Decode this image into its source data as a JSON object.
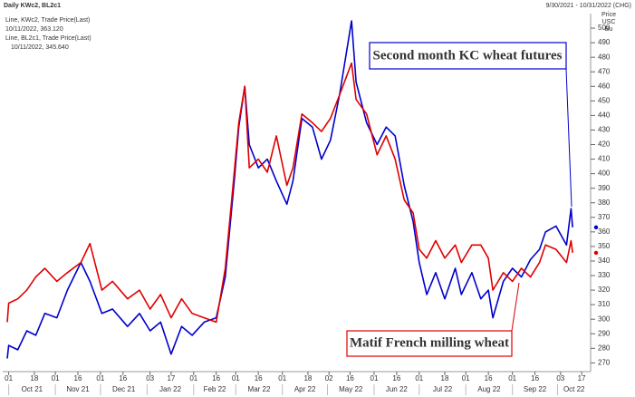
{
  "chart_data": {
    "type": "line",
    "title": "Daily KWc2, BL2c1",
    "date_range": "9/30/2021 - 10/31/2022 (CHG)",
    "y_axis_label": [
      "Price",
      "USC",
      "Bu"
    ],
    "grid": false,
    "xlim": [
      "2021-09-27",
      "2022-10-23"
    ],
    "ylim": [
      264,
      510
    ],
    "yticks": [
      270,
      280,
      290,
      300,
      310,
      320,
      330,
      340,
      350,
      360,
      370,
      380,
      390,
      400,
      410,
      420,
      430,
      440,
      450,
      460,
      470,
      480,
      490,
      500
    ],
    "xticks": [
      {
        "value": "2021-10-01",
        "label": "01"
      },
      {
        "value": "2021-10-18",
        "label": "18"
      },
      {
        "value": "2021-11-01",
        "label": "01"
      },
      {
        "value": "2021-11-16",
        "label": "16"
      },
      {
        "value": "2021-12-01",
        "label": "01"
      },
      {
        "value": "2021-12-16",
        "label": "16"
      },
      {
        "value": "2022-01-03",
        "label": "03"
      },
      {
        "value": "2022-01-17",
        "label": "17"
      },
      {
        "value": "2022-02-01",
        "label": "01"
      },
      {
        "value": "2022-02-16",
        "label": "16"
      },
      {
        "value": "2022-03-01",
        "label": "01"
      },
      {
        "value": "2022-03-16",
        "label": "16"
      },
      {
        "value": "2022-04-01",
        "label": "01"
      },
      {
        "value": "2022-04-18",
        "label": "18"
      },
      {
        "value": "2022-05-02",
        "label": "02"
      },
      {
        "value": "2022-05-16",
        "label": "16"
      },
      {
        "value": "2022-06-01",
        "label": "01"
      },
      {
        "value": "2022-06-16",
        "label": "16"
      },
      {
        "value": "2022-07-01",
        "label": "01"
      },
      {
        "value": "2022-07-18",
        "label": "18"
      },
      {
        "value": "2022-08-01",
        "label": "01"
      },
      {
        "value": "2022-08-16",
        "label": "16"
      },
      {
        "value": "2022-09-01",
        "label": "01"
      },
      {
        "value": "2022-09-16",
        "label": "16"
      },
      {
        "value": "2022-10-03",
        "label": "03"
      },
      {
        "value": "2022-10-17",
        "label": "17"
      }
    ],
    "month_labels": [
      {
        "value": "2021-10-01",
        "label": "Oct 21"
      },
      {
        "value": "2021-11-01",
        "label": "Nov 21"
      },
      {
        "value": "2021-12-01",
        "label": "Dec 21"
      },
      {
        "value": "2022-01-01",
        "label": "Jan 22"
      },
      {
        "value": "2022-02-01",
        "label": "Feb 22"
      },
      {
        "value": "2022-03-01",
        "label": "Mar 22"
      },
      {
        "value": "2022-04-01",
        "label": "Apr 22"
      },
      {
        "value": "2022-05-01",
        "label": "May 22"
      },
      {
        "value": "2022-06-01",
        "label": "Jun 22"
      },
      {
        "value": "2022-07-01",
        "label": "Jul 22"
      },
      {
        "value": "2022-08-01",
        "label": "Aug 22"
      },
      {
        "value": "2022-09-01",
        "label": "Sep 22"
      },
      {
        "value": "2022-10-01",
        "label": "Oct 22"
      }
    ],
    "x": [
      "2021-09-30",
      "2021-10-01",
      "2021-10-07",
      "2021-10-13",
      "2021-10-19",
      "2021-10-25",
      "2021-11-02",
      "2021-11-09",
      "2021-11-18",
      "2021-11-24",
      "2021-12-02",
      "2021-12-09",
      "2021-12-19",
      "2021-12-27",
      "2022-01-03",
      "2022-01-10",
      "2022-01-17",
      "2022-01-24",
      "2022-01-31",
      "2022-02-08",
      "2022-02-16",
      "2022-02-22",
      "2022-02-28",
      "2022-03-03",
      "2022-03-07",
      "2022-03-10",
      "2022-03-16",
      "2022-03-22",
      "2022-03-28",
      "2022-04-04",
      "2022-04-08",
      "2022-04-14",
      "2022-04-21",
      "2022-04-27",
      "2022-05-03",
      "2022-05-09",
      "2022-05-17",
      "2022-05-20",
      "2022-05-27",
      "2022-06-03",
      "2022-06-09",
      "2022-06-15",
      "2022-06-21",
      "2022-06-27",
      "2022-07-01",
      "2022-07-06",
      "2022-07-12",
      "2022-07-18",
      "2022-07-25",
      "2022-07-29",
      "2022-08-05",
      "2022-08-11",
      "2022-08-16",
      "2022-08-19",
      "2022-08-26",
      "2022-09-01",
      "2022-09-07",
      "2022-09-13",
      "2022-09-19",
      "2022-09-23",
      "2022-09-30",
      "2022-10-07",
      "2022-10-10",
      "2022-10-11"
    ],
    "series": [
      {
        "name": "Line, KWc2, Trade Price(Last)",
        "legend_value": "10/11/2022, 363.120",
        "color": "#0000cc",
        "values": [
          273,
          282,
          279,
          292,
          289,
          304,
          301,
          320,
          339,
          326,
          304,
          307,
          295,
          304,
          292,
          298,
          276,
          295,
          289,
          298,
          301,
          329,
          395,
          432,
          460,
          420,
          404,
          410,
          395,
          379,
          395,
          438,
          432,
          410,
          423,
          454,
          505,
          463,
          435,
          420,
          432,
          426,
          392,
          367,
          339,
          317,
          332,
          314,
          335,
          317,
          332,
          314,
          320,
          301,
          326,
          335,
          329,
          341,
          348,
          360,
          364,
          351,
          376,
          363.12
        ]
      },
      {
        "name": "Line, BL2c1, Trade Price(Last)",
        "legend_value": "10/11/2022, 345.640",
        "color": "#e00000",
        "values": [
          298,
          311,
          314,
          320,
          329,
          335,
          326,
          332,
          339,
          352,
          320,
          326,
          314,
          320,
          307,
          317,
          301,
          314,
          304,
          301,
          298,
          335,
          401,
          435,
          460,
          404,
          410,
          401,
          426,
          392,
          404,
          441,
          435,
          429,
          438,
          454,
          476,
          451,
          441,
          413,
          426,
          410,
          382,
          373,
          348,
          342,
          354,
          342,
          351,
          339,
          351,
          351,
          342,
          320,
          332,
          326,
          335,
          329,
          339,
          351,
          348,
          339,
          354,
          345.64
        ]
      }
    ],
    "annotations": [
      {
        "text": "Second month KC wheat futures",
        "color": "#0000cc"
      },
      {
        "text": "Matif French milling wheat",
        "color": "#e00000"
      }
    ]
  }
}
